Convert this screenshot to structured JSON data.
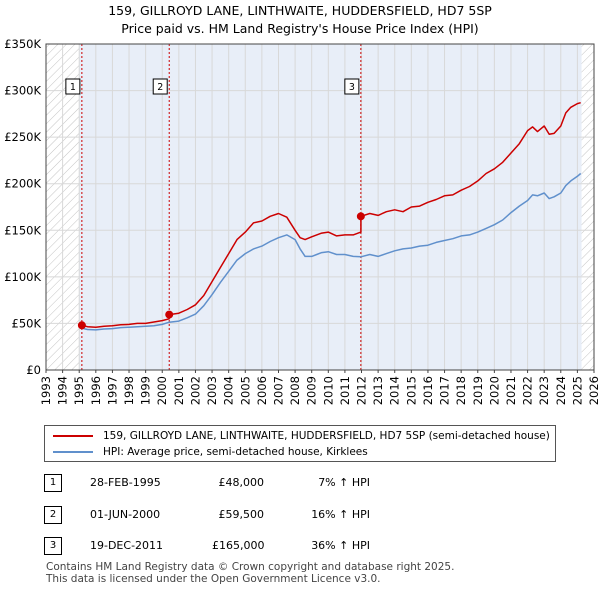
{
  "title_line1": "159, GILLROYD LANE, LINTHWAITE, HUDDERSFIELD, HD7 5SP",
  "title_line2": "Price paid vs. HM Land Registry's House Price Index (HPI)",
  "colors": {
    "price": "#cc0000",
    "hpi": "#6090cc",
    "shade": "#e8eef8",
    "grid": "#d8d8d8"
  },
  "chart_data": {
    "type": "line",
    "xlim": [
      1993,
      2026
    ],
    "ylim": [
      0,
      350000
    ],
    "x_ticks": [
      "1993",
      "1994",
      "1995",
      "1996",
      "1997",
      "1998",
      "1999",
      "2000",
      "2001",
      "2002",
      "2003",
      "2004",
      "2005",
      "2006",
      "2007",
      "2008",
      "2009",
      "2010",
      "2011",
      "2012",
      "2013",
      "2014",
      "2015",
      "2016",
      "2017",
      "2018",
      "2019",
      "2020",
      "2021",
      "2022",
      "2023",
      "2024",
      "2025",
      "2026"
    ],
    "y_ticks": [
      {
        "value": 0,
        "label": "£0"
      },
      {
        "value": 50000,
        "label": "£50K"
      },
      {
        "value": 100000,
        "label": "£100K"
      },
      {
        "value": 150000,
        "label": "£150K"
      },
      {
        "value": 200000,
        "label": "£200K"
      },
      {
        "value": 250000,
        "label": "£250K"
      },
      {
        "value": 300000,
        "label": "£300K"
      },
      {
        "value": 350000,
        "label": "£350K"
      }
    ],
    "data_start": 1995.0,
    "data_end": 2025.25,
    "series": [
      {
        "name": "159, GILLROYD LANE, LINTHWAITE, HUDDERSFIELD, HD7 5SP (semi-detached house)",
        "color": "#cc0000",
        "x": [
          1995.16,
          1995.5,
          1996,
          1996.5,
          1997,
          1997.5,
          1998,
          1998.5,
          1999,
          1999.5,
          2000,
          2000.42,
          2000.42,
          2001,
          2001.5,
          2002,
          2002.5,
          2003,
          2003.5,
          2004,
          2004.5,
          2005,
          2005.5,
          2006,
          2006.5,
          2007,
          2007.5,
          2008,
          2008.3,
          2008.6,
          2009,
          2009.3,
          2009.6,
          2010,
          2010.5,
          2011,
          2011.5,
          2011.96,
          2011.96,
          2012.5,
          2013,
          2013.5,
          2014,
          2014.5,
          2015,
          2015.5,
          2016,
          2016.5,
          2017,
          2017.5,
          2018,
          2018.5,
          2019,
          2019.5,
          2020,
          2020.5,
          2021,
          2021.5,
          2022,
          2022.3,
          2022.6,
          2023,
          2023.3,
          2023.6,
          2024,
          2024.3,
          2024.6,
          2025,
          2025.2
        ],
        "y": [
          48000,
          46500,
          46000,
          47000,
          47500,
          48500,
          49000,
          50000,
          50000,
          51500,
          53000,
          55000,
          59500,
          61000,
          65000,
          70000,
          80000,
          95000,
          110000,
          125000,
          140000,
          148000,
          158000,
          160000,
          165000,
          168000,
          164000,
          150000,
          142000,
          140000,
          143000,
          145000,
          147000,
          148000,
          144000,
          145000,
          145000,
          148000,
          165000,
          168000,
          166000,
          170000,
          172000,
          170000,
          175000,
          176000,
          180000,
          183000,
          187000,
          188000,
          193000,
          197000,
          203000,
          211000,
          216000,
          223000,
          233000,
          243000,
          257000,
          261000,
          256000,
          262000,
          253000,
          254000,
          262000,
          276000,
          282000,
          286000,
          287000
        ]
      },
      {
        "name": "HPI: Average price, semi-detached house, Kirklees",
        "color": "#6090cc",
        "x": [
          1995.16,
          1995.5,
          1996,
          1996.5,
          1997,
          1997.5,
          1998,
          1998.5,
          1999,
          1999.5,
          2000,
          2000.42,
          2001,
          2001.5,
          2002,
          2002.5,
          2003,
          2003.5,
          2004,
          2004.5,
          2005,
          2005.5,
          2006,
          2006.5,
          2007,
          2007.5,
          2008,
          2008.3,
          2008.6,
          2009,
          2009.3,
          2009.6,
          2010,
          2010.5,
          2011,
          2011.5,
          2011.96,
          2012.5,
          2013,
          2013.5,
          2014,
          2014.5,
          2015,
          2015.5,
          2016,
          2016.5,
          2017,
          2017.5,
          2018,
          2018.5,
          2019,
          2019.5,
          2020,
          2020.5,
          2021,
          2021.5,
          2022,
          2022.3,
          2022.6,
          2023,
          2023.3,
          2023.6,
          2024,
          2024.3,
          2024.6,
          2025,
          2025.2
        ],
        "y": [
          44900,
          43500,
          43000,
          44000,
          44500,
          45500,
          46000,
          46500,
          47000,
          47500,
          49000,
          51300,
          52500,
          56000,
          60000,
          69000,
          81000,
          94000,
          106000,
          118000,
          125000,
          130000,
          133000,
          138000,
          142000,
          145000,
          140000,
          130000,
          122000,
          122000,
          124000,
          126000,
          127000,
          124000,
          124000,
          122000,
          121500,
          124000,
          122000,
          125000,
          128000,
          130000,
          131000,
          133000,
          134000,
          137000,
          139000,
          141000,
          144000,
          145000,
          148000,
          152000,
          156000,
          161000,
          169000,
          176000,
          182000,
          188000,
          187000,
          190000,
          184000,
          186000,
          190000,
          198000,
          203000,
          208000,
          211000
        ]
      }
    ],
    "sales": [
      {
        "label": "1",
        "x": 1995.16,
        "y": 48000
      },
      {
        "label": "2",
        "x": 2000.42,
        "y": 59500
      },
      {
        "label": "3",
        "x": 2011.96,
        "y": 165000
      }
    ]
  },
  "legend": {
    "price_label": "159, GILLROYD LANE, LINTHWAITE, HUDDERSFIELD, HD7 5SP (semi-detached house)",
    "hpi_label": "HPI: Average price, semi-detached house, Kirklees"
  },
  "transactions": [
    {
      "num": "1",
      "date": "28-FEB-1995",
      "price": "£48,000",
      "hpi": "7% ↑ HPI"
    },
    {
      "num": "2",
      "date": "01-JUN-2000",
      "price": "£59,500",
      "hpi": "16% ↑ HPI"
    },
    {
      "num": "3",
      "date": "19-DEC-2011",
      "price": "£165,000",
      "hpi": "36% ↑ HPI"
    }
  ],
  "footer_line1": "Contains HM Land Registry data © Crown copyright and database right 2025.",
  "footer_line2": "This data is licensed under the Open Government Licence v3.0."
}
